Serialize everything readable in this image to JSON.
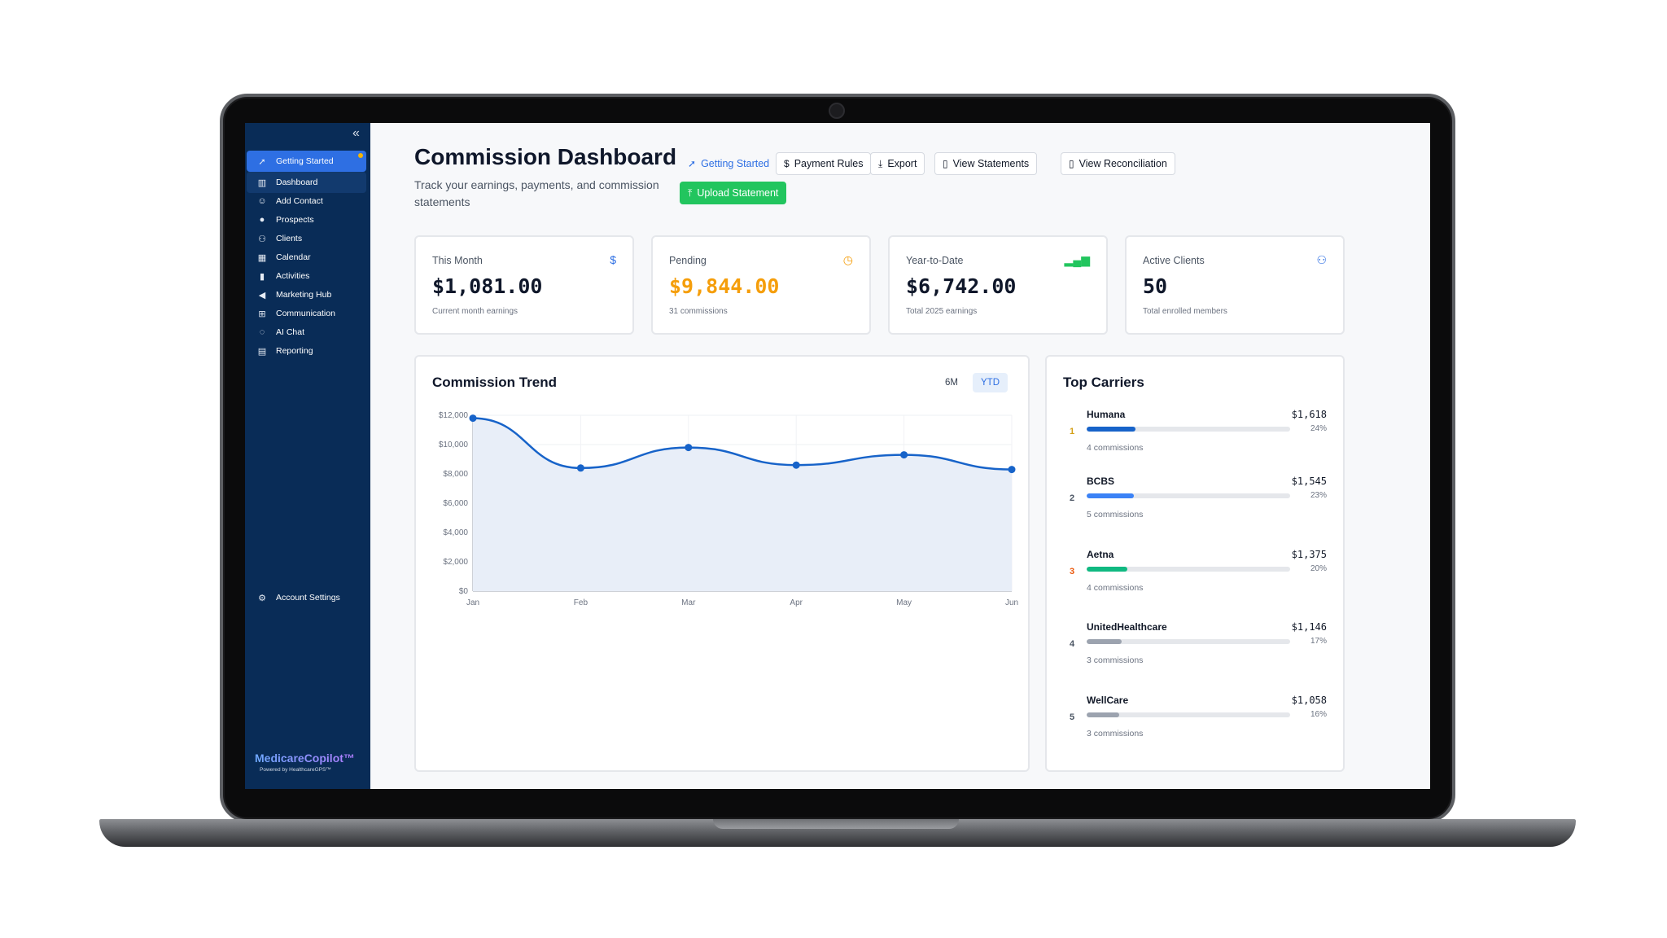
{
  "sidebar": {
    "collapse_icon": "double-chevron-left-icon",
    "items": [
      {
        "label": "Getting Started",
        "icon": "rocket-icon"
      },
      {
        "label": "Dashboard",
        "icon": "bar-chart-icon"
      },
      {
        "label": "Add Contact",
        "icon": "user-plus-icon"
      },
      {
        "label": "Prospects",
        "icon": "user-icon"
      },
      {
        "label": "Clients",
        "icon": "users-icon"
      },
      {
        "label": "Calendar",
        "icon": "calendar-icon"
      },
      {
        "label": "Activities",
        "icon": "activity-chart-icon"
      },
      {
        "label": "Marketing Hub",
        "icon": "megaphone-icon"
      },
      {
        "label": "Communication",
        "icon": "flow-icon"
      },
      {
        "label": "AI Chat",
        "icon": "chat-icon"
      },
      {
        "label": "Reporting",
        "icon": "clipboard-icon"
      }
    ],
    "account_settings": "Account Settings",
    "brand": "MedicareCopilot™",
    "powered_by": "Powered by HealthcareGPS™"
  },
  "header": {
    "title": "Commission Dashboard",
    "subtitle": "Track your earnings, payments, and commission statements",
    "buttons": {
      "getting_started": "Getting Started",
      "payment_rules": "Payment Rules",
      "export": "Export",
      "view_statements": "View Statements",
      "view_reconciliation": "View Reconciliation",
      "upload_statement": "Upload Statement"
    }
  },
  "stats": [
    {
      "label": "This Month",
      "value": "$1,081.00",
      "desc": "Current month earnings",
      "icon": "dollar-circle-icon",
      "color": "#0f172a",
      "icon_color": "#2e6fe3"
    },
    {
      "label": "Pending",
      "value": "$9,844.00",
      "desc": "31 commissions",
      "icon": "clock-icon",
      "color": "#f59e0b",
      "icon_color": "#f59e0b"
    },
    {
      "label": "Year-to-Date",
      "value": "$6,742.00",
      "desc": "Total 2025 earnings",
      "icon": "bar-chart-icon",
      "color": "#0f172a",
      "icon_color": "#22c55e"
    },
    {
      "label": "Active Clients",
      "value": "50",
      "desc": "Total enrolled members",
      "icon": "users-icon",
      "color": "#0f172a",
      "icon_color": "#2e6fe3"
    }
  ],
  "trend": {
    "title": "Commission Trend",
    "ranges": [
      "6M",
      "YTD"
    ],
    "selected_range": "YTD"
  },
  "chart_data": {
    "type": "area",
    "title": "Commission Trend",
    "x": [
      "Jan",
      "Feb",
      "Mar",
      "Apr",
      "May",
      "Jun"
    ],
    "series": [
      {
        "values": [
          11800,
          8400,
          9800,
          8600,
          9300,
          8300
        ],
        "color": "#1763c9"
      }
    ],
    "y_ticks": [
      "$0",
      "$2,000",
      "$4,000",
      "$6,000",
      "$8,000",
      "$10,000",
      "$12,000"
    ],
    "ylim": [
      0,
      12000
    ],
    "grid": true,
    "xlabel": "",
    "ylabel": ""
  },
  "carriers": {
    "title": "Top Carriers",
    "items": [
      {
        "rank": "1",
        "name": "Humana",
        "amount": "$1,618",
        "pct_label": "24%",
        "share": 0.24,
        "count": "4 commissions",
        "color": "#1763c9",
        "rank_color": "#d4a017"
      },
      {
        "rank": "2",
        "name": "BCBS",
        "amount": "$1,545",
        "pct_label": "23%",
        "share": 0.23,
        "count": "5 commissions",
        "color": "#3b82f6",
        "rank_color": "#4b5563"
      },
      {
        "rank": "3",
        "name": "Aetna",
        "amount": "$1,375",
        "pct_label": "20%",
        "share": 0.2,
        "count": "4 commissions",
        "color": "#10b981",
        "rank_color": "#ea580c"
      },
      {
        "rank": "4",
        "name": "UnitedHealthcare",
        "amount": "$1,146",
        "pct_label": "17%",
        "share": 0.17,
        "count": "3 commissions",
        "color": "#9ca3af",
        "rank_color": "#4b5563"
      },
      {
        "rank": "5",
        "name": "WellCare",
        "amount": "$1,058",
        "pct_label": "16%",
        "share": 0.16,
        "count": "3 commissions",
        "color": "#9ca3af",
        "rank_color": "#4b5563"
      }
    ]
  }
}
